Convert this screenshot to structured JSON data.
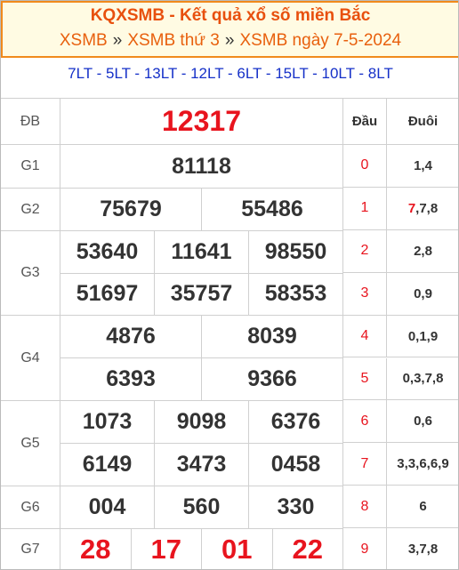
{
  "header": {
    "title": "KQXSMB - Kết quả xổ số miền Bắc",
    "breadcrumb": [
      "XSMB",
      "XSMB thứ 3",
      "XSMB ngày 7-5-2024"
    ],
    "separator": "»",
    "codes": "7LT - 5LT - 13LT - 12LT - 6LT - 15LT - 10LT - 8LT"
  },
  "table": {
    "prizes": [
      {
        "label": "ĐB",
        "rows": [
          [
            "12317"
          ]
        ]
      },
      {
        "label": "G1",
        "rows": [
          [
            "81118"
          ]
        ]
      },
      {
        "label": "G2",
        "rows": [
          [
            "75679",
            "55486"
          ]
        ]
      },
      {
        "label": "G3",
        "rows": [
          [
            "53640",
            "11641",
            "98550"
          ],
          [
            "51697",
            "35757",
            "58353"
          ]
        ]
      },
      {
        "label": "G4",
        "rows": [
          [
            "4876",
            "8039"
          ],
          [
            "6393",
            "9366"
          ]
        ]
      },
      {
        "label": "G5",
        "rows": [
          [
            "1073",
            "9098",
            "6376"
          ],
          [
            "6149",
            "3473",
            "0458"
          ]
        ]
      },
      {
        "label": "G6",
        "rows": [
          [
            "004",
            "560",
            "330"
          ]
        ]
      },
      {
        "label": "G7",
        "rows": [
          [
            "28",
            "17",
            "01",
            "22"
          ]
        ]
      }
    ]
  },
  "loto": {
    "head_title": "Đầu",
    "tail_title": "Đuôi",
    "rows": [
      {
        "head": "0",
        "tail": [
          "1,4"
        ]
      },
      {
        "head": "1",
        "tail": [
          "7",
          ",7,8"
        ]
      },
      {
        "head": "2",
        "tail": [
          "2,8"
        ]
      },
      {
        "head": "3",
        "tail": [
          "0,9"
        ]
      },
      {
        "head": "4",
        "tail": [
          "0,1,9"
        ]
      },
      {
        "head": "5",
        "tail": [
          "0,3,7,8"
        ]
      },
      {
        "head": "6",
        "tail": [
          "0,6"
        ]
      },
      {
        "head": "7",
        "tail": [
          "3,3,6,6,9"
        ]
      },
      {
        "head": "8",
        "tail": [
          "6"
        ]
      },
      {
        "head": "9",
        "tail": [
          "3,7,8"
        ]
      }
    ]
  }
}
